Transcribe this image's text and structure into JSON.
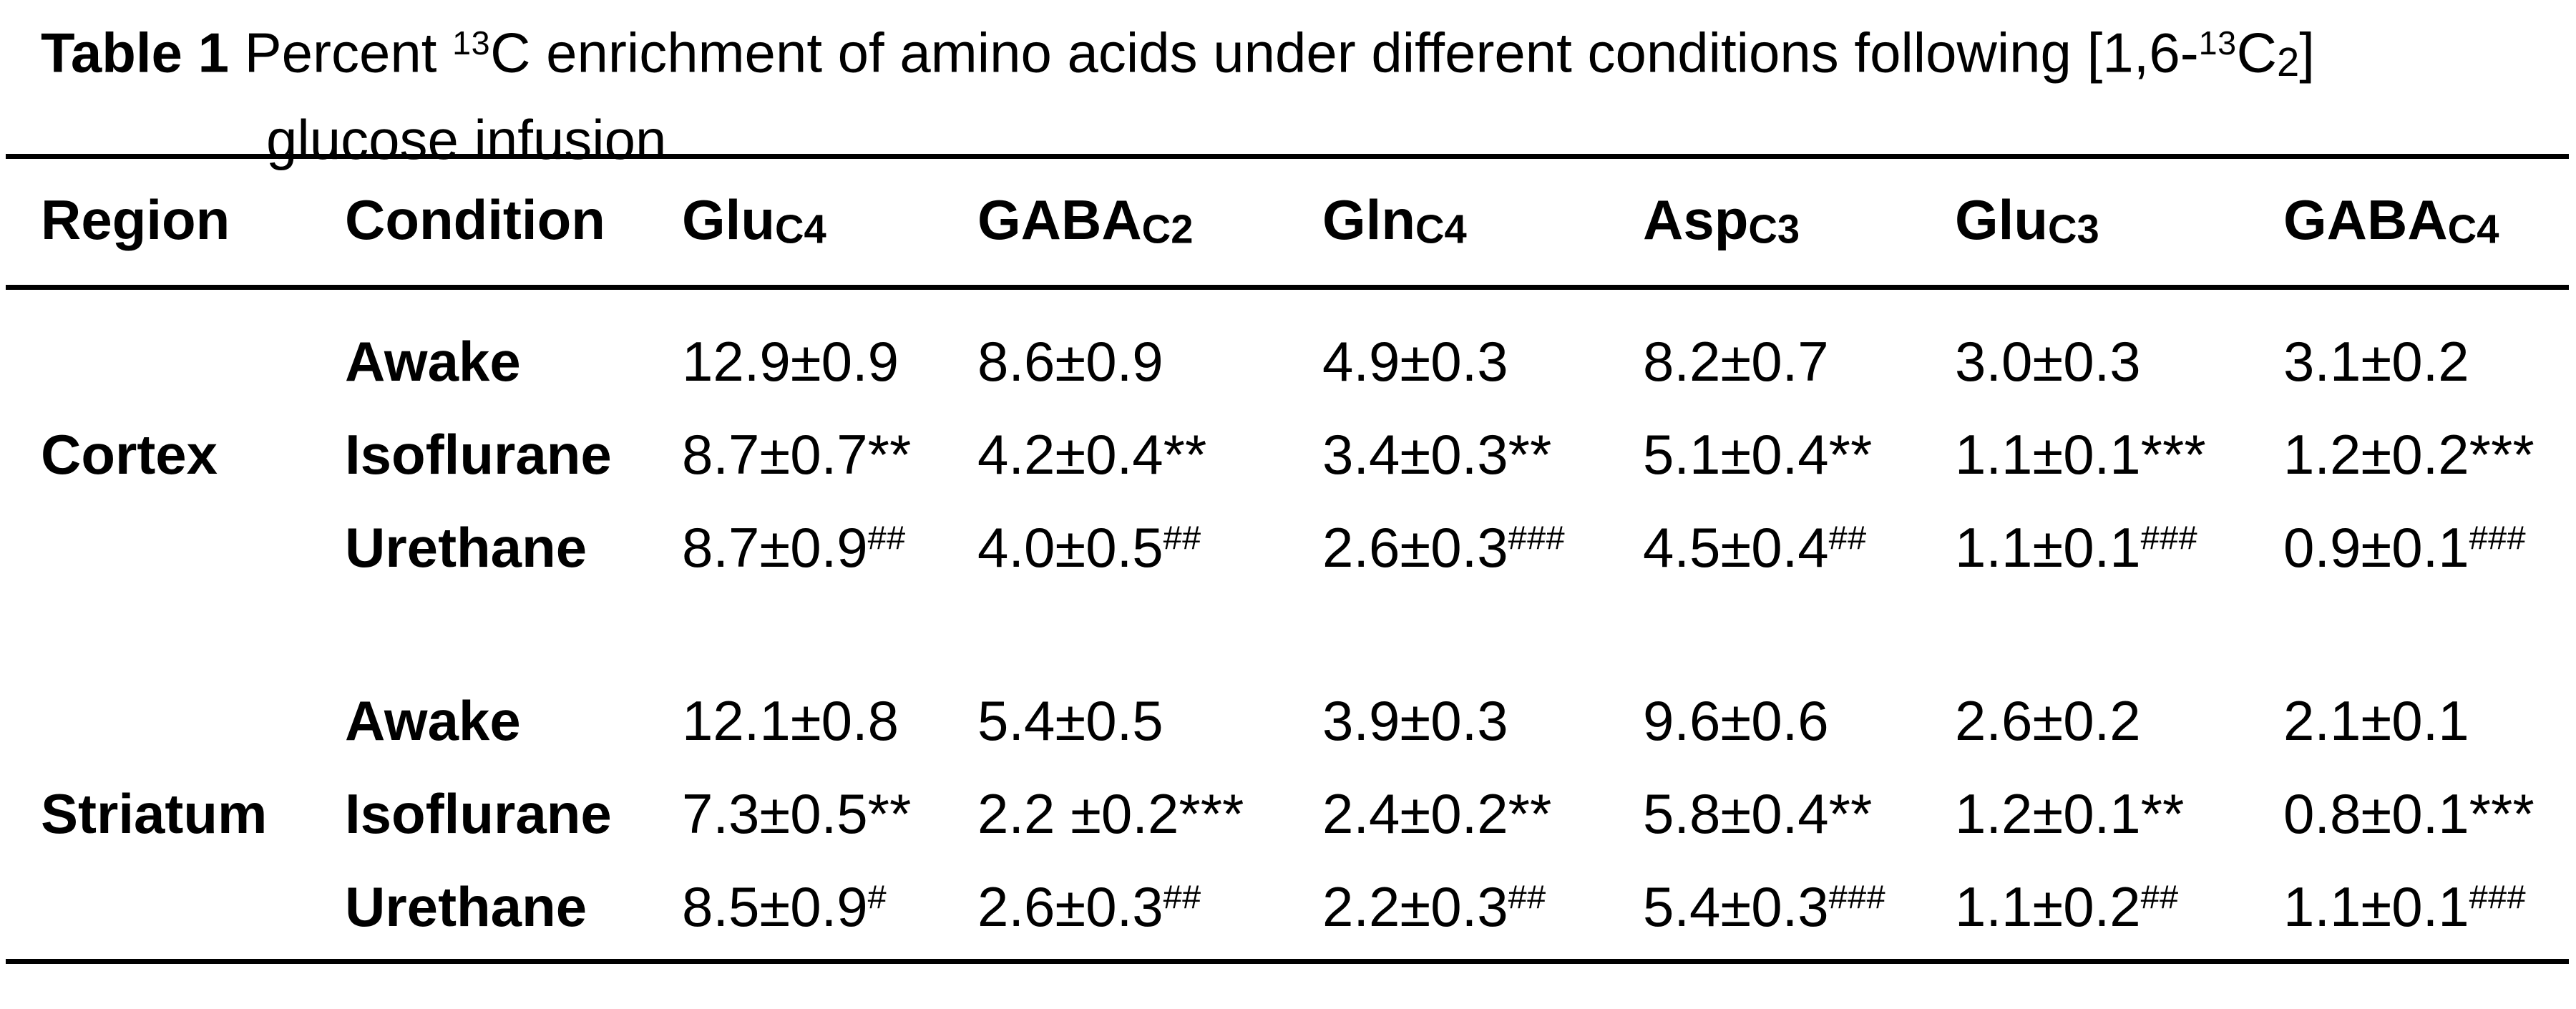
{
  "colors": {
    "text": "#000000",
    "background": "#ffffff",
    "rule": "#000000"
  },
  "caption": {
    "line1": [
      {
        "t": "Table 1",
        "b": true
      },
      {
        "t": " Percent "
      },
      {
        "t": "13",
        "sup": true
      },
      {
        "t": "C enrichment of amino acids under different conditions following [1,6-"
      },
      {
        "t": "13",
        "sup": true
      },
      {
        "t": "C"
      },
      {
        "t": "2",
        "sub": true
      },
      {
        "t": "]"
      }
    ],
    "line2": "glucose infusion"
  },
  "columns": [
    [
      {
        "t": "Region"
      }
    ],
    [
      {
        "t": "Condition"
      }
    ],
    [
      {
        "t": "Glu"
      },
      {
        "t": "C4",
        "sub": true
      }
    ],
    [
      {
        "t": "GABA"
      },
      {
        "t": "C2",
        "sub": true
      }
    ],
    [
      {
        "t": "Gln"
      },
      {
        "t": "C4",
        "sub": true
      }
    ],
    [
      {
        "t": "Asp"
      },
      {
        "t": "C3",
        "sub": true
      }
    ],
    [
      {
        "t": "Glu"
      },
      {
        "t": "C3",
        "sub": true
      }
    ],
    [
      {
        "t": "GABA"
      },
      {
        "t": "C4",
        "sub": true
      }
    ]
  ],
  "rows": [
    {
      "region": "",
      "condition": "Awake",
      "cells": [
        [
          {
            "t": "12.9±0.9"
          }
        ],
        [
          {
            "t": "8.6±0.9"
          }
        ],
        [
          {
            "t": "4.9±0.3"
          }
        ],
        [
          {
            "t": "8.2±0.7"
          }
        ],
        [
          {
            "t": "3.0±0.3"
          }
        ],
        [
          {
            "t": "3.1±0.2"
          }
        ]
      ]
    },
    {
      "region": "Cortex",
      "condition": "Isoflurane",
      "cells": [
        [
          {
            "t": "8.7±0.7**"
          }
        ],
        [
          {
            "t": "4.2±0.4**"
          }
        ],
        [
          {
            "t": "3.4±0.3**"
          }
        ],
        [
          {
            "t": "5.1±0.4**"
          }
        ],
        [
          {
            "t": "1.1±0.1***"
          }
        ],
        [
          {
            "t": "1.2±0.2***"
          }
        ]
      ]
    },
    {
      "region": "",
      "condition": "Urethane",
      "cells": [
        [
          {
            "t": "8.7±0.9"
          },
          {
            "t": "##",
            "sup": true
          }
        ],
        [
          {
            "t": "4.0±0.5"
          },
          {
            "t": "##",
            "sup": true
          }
        ],
        [
          {
            "t": "2.6±0.3"
          },
          {
            "t": "###",
            "sup": true
          }
        ],
        [
          {
            "t": "4.5±0.4"
          },
          {
            "t": "##",
            "sup": true
          }
        ],
        [
          {
            "t": "1.1±0.1"
          },
          {
            "t": "###",
            "sup": true
          }
        ],
        [
          {
            "t": "0.9±0.1"
          },
          {
            "t": "###",
            "sup": true
          }
        ]
      ]
    },
    {
      "region": "",
      "condition": "Awake",
      "cells": [
        [
          {
            "t": "12.1±0.8"
          }
        ],
        [
          {
            "t": "5.4±0.5"
          }
        ],
        [
          {
            "t": "3.9±0.3"
          }
        ],
        [
          {
            "t": "9.6±0.6"
          }
        ],
        [
          {
            "t": "2.6±0.2"
          }
        ],
        [
          {
            "t": "2.1±0.1"
          }
        ]
      ]
    },
    {
      "region": "Striatum",
      "condition": "Isoflurane",
      "cells": [
        [
          {
            "t": "7.3±0.5**"
          }
        ],
        [
          {
            "t": "2.2 ±0.2***"
          }
        ],
        [
          {
            "t": "2.4±0.2**"
          }
        ],
        [
          {
            "t": "5.8±0.4**"
          }
        ],
        [
          {
            "t": "1.2±0.1**"
          }
        ],
        [
          {
            "t": "0.8±0.1***"
          }
        ]
      ]
    },
    {
      "region": "",
      "condition": "Urethane",
      "cells": [
        [
          {
            "t": "8.5±0.9"
          },
          {
            "t": "#",
            "sup": true
          }
        ],
        [
          {
            "t": "2.6±0.3"
          },
          {
            "t": "##",
            "sup": true
          }
        ],
        [
          {
            "t": "2.2±0.3"
          },
          {
            "t": "##",
            "sup": true
          }
        ],
        [
          {
            "t": "5.4±0.3"
          },
          {
            "t": "###",
            "sup": true
          }
        ],
        [
          {
            "t": "1.1±0.2"
          },
          {
            "t": "##",
            "sup": true
          }
        ],
        [
          {
            "t": "1.1±0.1"
          },
          {
            "t": "###",
            "sup": true
          }
        ]
      ]
    }
  ]
}
